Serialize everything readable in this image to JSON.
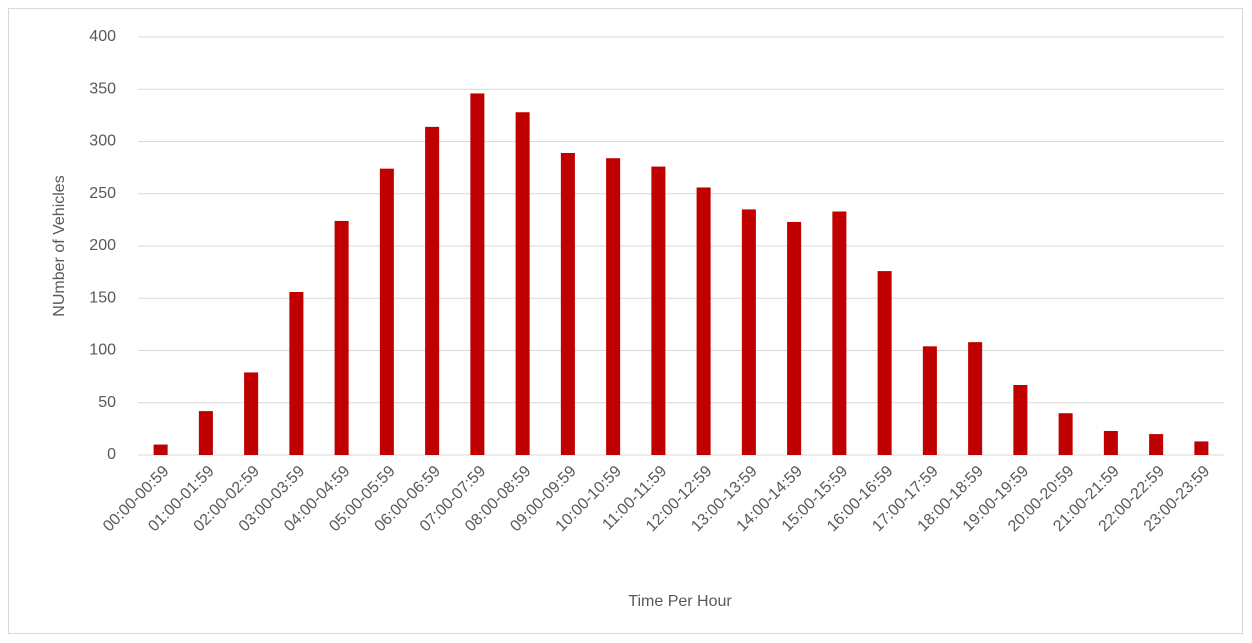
{
  "chart_data": {
    "type": "bar",
    "xlabel": "Time Per Hour",
    "ylabel": "NUmber of Vehicles",
    "categories": [
      "00:00-00:59",
      "01:00-01:59",
      "02:00-02:59",
      "03:00-03:59",
      "04:00-04:59",
      "05:00-05:59",
      "06:00-06:59",
      "07:00-07:59",
      "08:00-08:59",
      "09:00-09:59",
      "10:00-10:59",
      "11:00-11:59",
      "12:00-12:59",
      "13:00-13:59",
      "14:00-14:59",
      "15:00-15:59",
      "16:00-16:59",
      "17:00-17:59",
      "18:00-18:59",
      "19:00-19:59",
      "20:00-20:59",
      "21:00-21:59",
      "22:00-22:59",
      "23:00-23:59"
    ],
    "values": [
      10,
      42,
      79,
      156,
      224,
      274,
      314,
      346,
      328,
      289,
      284,
      276,
      256,
      235,
      223,
      233,
      176,
      104,
      108,
      67,
      40,
      23,
      20,
      13
    ],
    "color": "#c00000",
    "ylim": [
      0,
      400
    ],
    "yticks": [
      0,
      50,
      100,
      150,
      200,
      250,
      300,
      350,
      400
    ],
    "grid": true
  }
}
